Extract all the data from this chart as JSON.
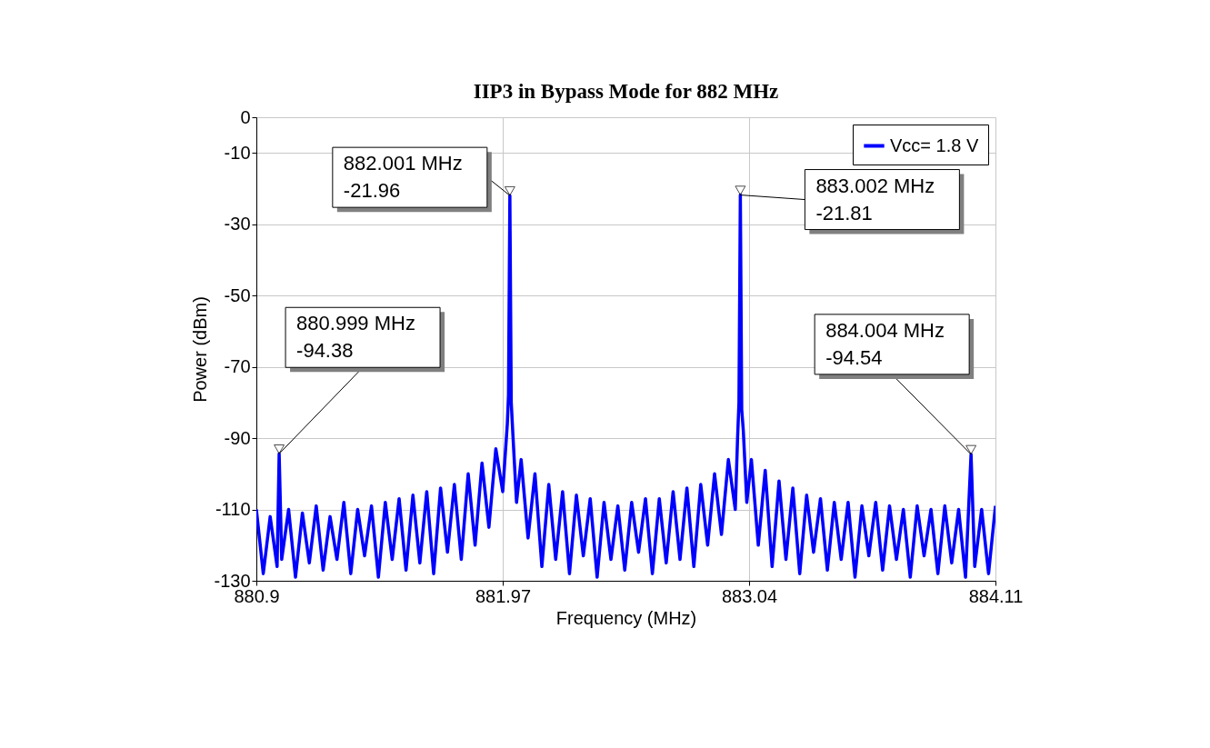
{
  "chart_data": {
    "type": "line",
    "title": "IIP3 in Bypass Mode for 882 MHz",
    "xlabel": "Frequency (MHz)",
    "ylabel": "Power (dBm)",
    "xlim": [
      880.9,
      884.11
    ],
    "xticks": [
      880.9,
      881.97,
      883.04,
      884.11
    ],
    "ylim": [
      -130,
      0
    ],
    "yticks": [
      0,
      -10,
      -30,
      -50,
      -70,
      -90,
      -110,
      -130
    ],
    "grid": true,
    "legend": "top right",
    "line_style": "solid",
    "series": [
      {
        "name": "Vcc= 1.8 V",
        "color": "#0000ff",
        "x": [
          880.9,
          880.93,
          880.96,
          880.99,
          880.999,
          881.01,
          881.04,
          881.07,
          881.1,
          881.13,
          881.16,
          881.19,
          881.22,
          881.25,
          881.28,
          881.31,
          881.34,
          881.37,
          881.4,
          881.43,
          881.46,
          881.49,
          881.52,
          881.55,
          881.58,
          881.61,
          881.64,
          881.67,
          881.7,
          881.73,
          881.76,
          881.79,
          881.82,
          881.85,
          881.88,
          881.91,
          881.94,
          881.97,
          881.99,
          881.995,
          882.001,
          882.007,
          882.015,
          882.03,
          882.05,
          882.08,
          882.11,
          882.14,
          882.17,
          882.2,
          882.23,
          882.26,
          882.29,
          882.32,
          882.35,
          882.38,
          882.41,
          882.44,
          882.47,
          882.5,
          882.53,
          882.56,
          882.59,
          882.62,
          882.65,
          882.68,
          882.71,
          882.74,
          882.77,
          882.8,
          882.83,
          882.86,
          882.89,
          882.92,
          882.95,
          882.98,
          882.99,
          882.996,
          883.002,
          883.008,
          883.015,
          883.03,
          883.05,
          883.08,
          883.11,
          883.14,
          883.17,
          883.2,
          883.23,
          883.26,
          883.29,
          883.32,
          883.35,
          883.38,
          883.41,
          883.44,
          883.47,
          883.5,
          883.53,
          883.56,
          883.59,
          883.62,
          883.65,
          883.68,
          883.71,
          883.74,
          883.77,
          883.8,
          883.83,
          883.86,
          883.89,
          883.92,
          883.95,
          883.98,
          884.004,
          884.02,
          884.05,
          884.08,
          884.11
        ],
        "values": [
          -110,
          -128,
          -112,
          -126,
          -94.38,
          -124,
          -110,
          -129,
          -111,
          -125,
          -109,
          -127,
          -112,
          -124,
          -108,
          -128,
          -110,
          -123,
          -109,
          -129,
          -108,
          -124,
          -107,
          -127,
          -106,
          -125,
          -105,
          -128,
          -104,
          -122,
          -103,
          -124,
          -100,
          -120,
          -97,
          -115,
          -93,
          -105,
          -86,
          -78,
          -21.96,
          -80,
          -90,
          -108,
          -96,
          -118,
          -100,
          -126,
          -103,
          -124,
          -105,
          -128,
          -106,
          -123,
          -107,
          -129,
          -108,
          -124,
          -109,
          -127,
          -108,
          -122,
          -107,
          -128,
          -107,
          -125,
          -105,
          -124,
          -104,
          -126,
          -103,
          -120,
          -100,
          -117,
          -96,
          -110,
          -90,
          -80,
          -21.81,
          -82,
          -88,
          -108,
          -96,
          -120,
          -99,
          -126,
          -102,
          -124,
          -104,
          -128,
          -106,
          -122,
          -107,
          -127,
          -108,
          -124,
          -108,
          -129,
          -109,
          -123,
          -108,
          -127,
          -109,
          -124,
          -110,
          -129,
          -109,
          -123,
          -110,
          -128,
          -109,
          -125,
          -110,
          -129,
          -94.54,
          -126,
          -110,
          -128,
          -109
        ]
      }
    ],
    "annotations": [
      {
        "text": "882.001 MHz\n-21.96",
        "x": 882.001,
        "y": -21.96
      },
      {
        "text": "883.002 MHz\n-21.81",
        "x": 883.002,
        "y": -21.81
      },
      {
        "text": "880.999 MHz\n-94.38",
        "x": 880.999,
        "y": -94.38
      },
      {
        "text": "884.004 MHz\n-94.54",
        "x": 884.004,
        "y": -94.54
      }
    ]
  }
}
